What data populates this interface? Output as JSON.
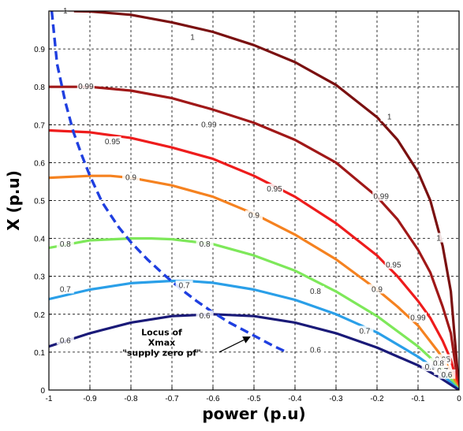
{
  "chart_data": {
    "type": "line",
    "xlabel": "power (p.u)",
    "ylabel": "X (p.u)",
    "xlim": [
      -1,
      0
    ],
    "ylim": [
      0,
      1
    ],
    "xticks": [
      "-1",
      "-0.9",
      "-0.8",
      "-0.7",
      "-0.6",
      "-0.5",
      "-0.4",
      "-0.3",
      "-0.2",
      "-0.1",
      "0"
    ],
    "yticks": [
      "0",
      "0.1",
      "0.2",
      "0.3",
      "0.4",
      "0.5",
      "0.6",
      "0.7",
      "0.8",
      "0.9"
    ],
    "grid": true,
    "series": [
      {
        "name": "1",
        "color": "#7a1010",
        "label_positions": [
          [
            -0.96,
            1.0
          ],
          [
            -0.65,
            0.93
          ],
          [
            -0.17,
            0.72
          ],
          [
            -0.05,
            0.4
          ]
        ],
        "x": [
          -0.95,
          -0.9,
          -0.8,
          -0.7,
          -0.6,
          -0.5,
          -0.4,
          -0.3,
          -0.2,
          -0.15,
          -0.1,
          -0.07,
          -0.04,
          -0.02,
          0
        ],
        "y": [
          1.0,
          0.999,
          0.99,
          0.97,
          0.945,
          0.91,
          0.865,
          0.805,
          0.72,
          0.66,
          0.575,
          0.5,
          0.38,
          0.26,
          0.0
        ]
      },
      {
        "name": "0.99",
        "color": "#a01818",
        "label_positions": [
          [
            -0.91,
            0.8
          ],
          [
            -0.61,
            0.7
          ],
          [
            -0.19,
            0.51
          ],
          [
            -0.1,
            0.19
          ]
        ],
        "x": [
          -1,
          -0.9,
          -0.8,
          -0.7,
          -0.6,
          -0.5,
          -0.4,
          -0.3,
          -0.2,
          -0.15,
          -0.1,
          -0.07,
          -0.04,
          -0.02,
          0
        ],
        "y": [
          0.8,
          0.8,
          0.79,
          0.77,
          0.74,
          0.705,
          0.66,
          0.6,
          0.51,
          0.45,
          0.37,
          0.31,
          0.22,
          0.15,
          0.0
        ]
      },
      {
        "name": "0.95",
        "color": "#ee1c1c",
        "label_positions": [
          [
            -0.845,
            0.655
          ],
          [
            -0.45,
            0.53
          ],
          [
            -0.16,
            0.33
          ],
          [
            -0.04,
            0.08
          ]
        ],
        "x": [
          -1,
          -0.9,
          -0.8,
          -0.7,
          -0.6,
          -0.5,
          -0.4,
          -0.3,
          -0.2,
          -0.15,
          -0.1,
          -0.07,
          -0.04,
          -0.02,
          0
        ],
        "y": [
          0.685,
          0.68,
          0.665,
          0.64,
          0.61,
          0.565,
          0.51,
          0.44,
          0.355,
          0.3,
          0.235,
          0.19,
          0.13,
          0.08,
          0.0
        ]
      },
      {
        "name": "0.9",
        "color": "#f58220",
        "label_positions": [
          [
            -0.8,
            0.56
          ],
          [
            -0.5,
            0.46
          ],
          [
            -0.2,
            0.265
          ],
          [
            -0.07,
            0.06
          ]
        ],
        "x": [
          -1,
          -0.9,
          -0.85,
          -0.8,
          -0.7,
          -0.6,
          -0.5,
          -0.4,
          -0.3,
          -0.2,
          -0.15,
          -0.1,
          -0.05,
          -0.02,
          0
        ],
        "y": [
          0.56,
          0.565,
          0.565,
          0.56,
          0.54,
          0.51,
          0.465,
          0.41,
          0.345,
          0.265,
          0.22,
          0.17,
          0.1,
          0.05,
          0.0
        ]
      },
      {
        "name": "0.8",
        "color": "#7ee85a",
        "label_positions": [
          [
            -0.96,
            0.385
          ],
          [
            -0.62,
            0.385
          ],
          [
            -0.35,
            0.26
          ],
          [
            -0.05,
            0.07
          ]
        ],
        "x": [
          -1,
          -0.9,
          -0.8,
          -0.75,
          -0.7,
          -0.6,
          -0.5,
          -0.4,
          -0.3,
          -0.2,
          -0.1,
          -0.05,
          -0.02,
          0
        ],
        "y": [
          0.375,
          0.395,
          0.4,
          0.4,
          0.398,
          0.385,
          0.355,
          0.315,
          0.26,
          0.195,
          0.115,
          0.065,
          0.03,
          0.0
        ]
      },
      {
        "name": "0.7",
        "color": "#2a9fe8",
        "label_positions": [
          [
            -0.96,
            0.265
          ],
          [
            -0.67,
            0.275
          ],
          [
            -0.23,
            0.155
          ],
          [
            -0.04,
            0.05
          ]
        ],
        "x": [
          -1,
          -0.9,
          -0.8,
          -0.7,
          -0.65,
          -0.6,
          -0.5,
          -0.4,
          -0.3,
          -0.2,
          -0.1,
          -0.05,
          0
        ],
        "y": [
          0.24,
          0.265,
          0.282,
          0.288,
          0.287,
          0.283,
          0.265,
          0.238,
          0.2,
          0.152,
          0.088,
          0.05,
          0.0
        ]
      },
      {
        "name": "0.6",
        "color": "#1a1a78",
        "label_positions": [
          [
            -0.96,
            0.13
          ],
          [
            -0.62,
            0.195
          ],
          [
            -0.35,
            0.105
          ],
          [
            -0.03,
            0.04
          ]
        ],
        "x": [
          -1,
          -0.9,
          -0.8,
          -0.7,
          -0.6,
          -0.5,
          -0.4,
          -0.3,
          -0.2,
          -0.1,
          -0.05,
          0
        ],
        "y": [
          0.115,
          0.15,
          0.178,
          0.195,
          0.2,
          0.195,
          0.178,
          0.15,
          0.112,
          0.065,
          0.035,
          0.0
        ]
      }
    ],
    "locus": {
      "color": "#1f3fe0",
      "x": [
        -0.993,
        -0.98,
        -0.96,
        -0.94,
        -0.92,
        -0.9,
        -0.87,
        -0.83,
        -0.8,
        -0.76,
        -0.72,
        -0.68,
        -0.64,
        -0.6,
        -0.56,
        -0.52,
        -0.48,
        -0.45,
        -0.42
      ],
      "y": [
        1.0,
        0.86,
        0.76,
        0.68,
        0.62,
        0.565,
        0.495,
        0.43,
        0.39,
        0.345,
        0.305,
        0.268,
        0.235,
        0.205,
        0.178,
        0.155,
        0.132,
        0.115,
        0.1
      ]
    },
    "annotation": {
      "lines": [
        "Locus of",
        "Xmax",
        "\"supply zero pf\""
      ],
      "arrow_from": [
        -0.585,
        0.1
      ],
      "arrow_to": [
        -0.51,
        0.14
      ]
    }
  }
}
